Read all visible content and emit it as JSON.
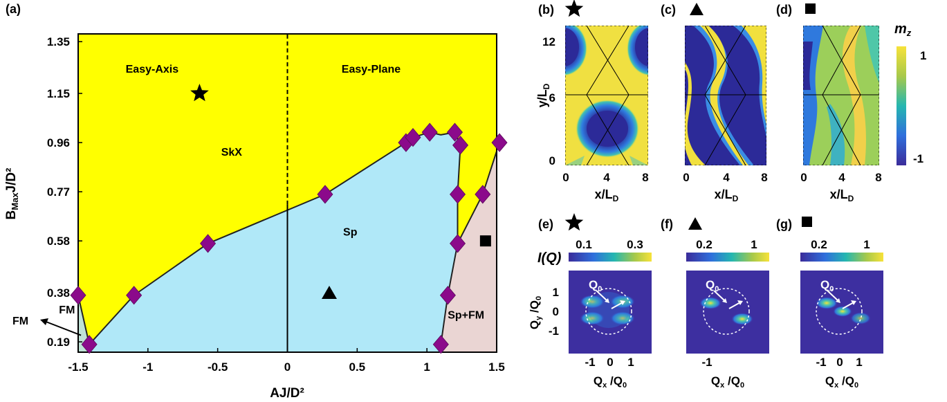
{
  "panel_labels": {
    "a": "(a)",
    "b": "(b)",
    "c": "(c)",
    "d": "(d)",
    "e": "(e)",
    "f": "(f)",
    "g": "(g)"
  },
  "colors": {
    "easy_axis_region": "#ffff00",
    "sp_region": "#b0e8f8",
    "sp_fm_region": "#ead5d3",
    "fm_region": "#bfe2d6",
    "marker": "#8b0a8b",
    "boundary": "#222222"
  },
  "chart_data": [
    {
      "type": "scatter",
      "title": "",
      "xlabel": "AJ/D²",
      "ylabel": "BMaxJ/D²",
      "ylabel_main": "B",
      "ylabel_sub": "Max",
      "ylabel_tail": "J/D²",
      "xlim": [
        -1.5,
        1.5
      ],
      "ylim": [
        0.15,
        1.38
      ],
      "xticks": [
        -1.5,
        -1,
        -0.5,
        0,
        0.5,
        1,
        1.5
      ],
      "xtick_labels": [
        "-1.5",
        "-1",
        "-0.5",
        "0",
        "0.5",
        "1",
        "1.5"
      ],
      "yticks": [
        0.19,
        0.38,
        0.58,
        0.77,
        0.96,
        1.15,
        1.35
      ],
      "ytick_labels": [
        "0.19",
        "0.38",
        "0.58",
        "0.77",
        "0.96",
        "1.15",
        "1.35"
      ],
      "grid": false,
      "regions": [
        {
          "label": "SkX",
          "x": -0.4,
          "y": 0.91
        },
        {
          "label": "Sp",
          "x": 0.45,
          "y": 0.6
        },
        {
          "label": "Sp+FM",
          "x": 1.28,
          "y": 0.28
        },
        {
          "label": "FM",
          "x": -1.58,
          "y": 0.3
        }
      ],
      "header_labels": [
        {
          "label": "Easy-Axis",
          "x": -0.97,
          "y": 1.23
        },
        {
          "label": "Easy-Plane",
          "x": 0.6,
          "y": 1.23
        }
      ],
      "series": [
        {
          "type": "transition_points",
          "marker": "diamond",
          "x": [
            -1.5,
            -1.42,
            -1.1,
            -0.57,
            0.27,
            0.85,
            0.9,
            1.02,
            1.2,
            1.24,
            1.22,
            1.22,
            1.15,
            1.1,
            1.4,
            1.52
          ],
          "y": [
            0.37,
            0.18,
            0.37,
            0.57,
            0.76,
            0.96,
            0.98,
            1.0,
            1.0,
            0.95,
            0.76,
            0.57,
            0.37,
            0.18,
            0.76,
            0.96
          ]
        }
      ],
      "boundaries": {
        "skx_sp": [
          [
            -1.42,
            0.18
          ],
          [
            -1.1,
            0.37
          ],
          [
            -0.57,
            0.57
          ],
          [
            0.27,
            0.76
          ],
          [
            0.85,
            0.96
          ],
          [
            0.9,
            0.98
          ],
          [
            1.02,
            1.0
          ],
          [
            1.1,
            0.99
          ],
          [
            1.2,
            1.0
          ]
        ],
        "sp_spfm": [
          [
            1.1,
            0.18
          ],
          [
            1.15,
            0.37
          ],
          [
            1.22,
            0.57
          ],
          [
            1.22,
            0.76
          ],
          [
            1.24,
            0.95
          ],
          [
            1.2,
            1.0
          ]
        ],
        "skx_spfm": [
          [
            1.22,
            0.57
          ],
          [
            1.4,
            0.76
          ],
          [
            1.52,
            0.96
          ],
          [
            1.56,
            1.38
          ]
        ],
        "fm_skx": [
          [
            -1.5,
            0.37
          ],
          [
            -1.42,
            0.18
          ]
        ]
      },
      "special_markers": [
        {
          "shape": "star",
          "x": -0.63,
          "y": 1.15
        },
        {
          "shape": "triangle",
          "x": 0.3,
          "y": 0.38
        },
        {
          "shape": "square",
          "x": 1.42,
          "y": 0.58
        }
      ],
      "vertical_lines": [
        {
          "x": 0,
          "dashed_above": 0.72
        }
      ],
      "annotation_arrow": {
        "label": "FM",
        "from": [
          -1.58,
          0.29
        ],
        "to": [
          -1.46,
          0.21
        ]
      }
    },
    {
      "type": "heatmap",
      "panels": [
        "(b)",
        "(c)",
        "(d)"
      ],
      "xlabel": "x/LD",
      "xlabel_main": "x/L",
      "xlabel_sub": "D",
      "ylabel": "y/LD",
      "ylabel_main": "y/L",
      "ylabel_sub": "D",
      "xticks": [
        0,
        4,
        8
      ],
      "yticks": [
        0,
        6,
        12
      ],
      "colorbar": {
        "label": "mz",
        "label_main": "m",
        "label_sub": "z",
        "ticks": [
          "1",
          "-1"
        ]
      }
    },
    {
      "type": "heatmap",
      "panels": [
        "(e)",
        "(f)",
        "(g)"
      ],
      "xlabel": "Qx /Q0",
      "ylabel": "Qy /Q0",
      "xticks": [
        "-1",
        "0",
        "1"
      ],
      "yticks": [
        "1",
        "0",
        "-1"
      ],
      "intensity_label": "I(Q)",
      "colorbar_ticks": [
        [
          "0.1",
          "0.3"
        ],
        [
          "0.2",
          "1"
        ],
        [
          "0.2",
          "1"
        ]
      ],
      "arrow_label": "Q0"
    }
  ]
}
